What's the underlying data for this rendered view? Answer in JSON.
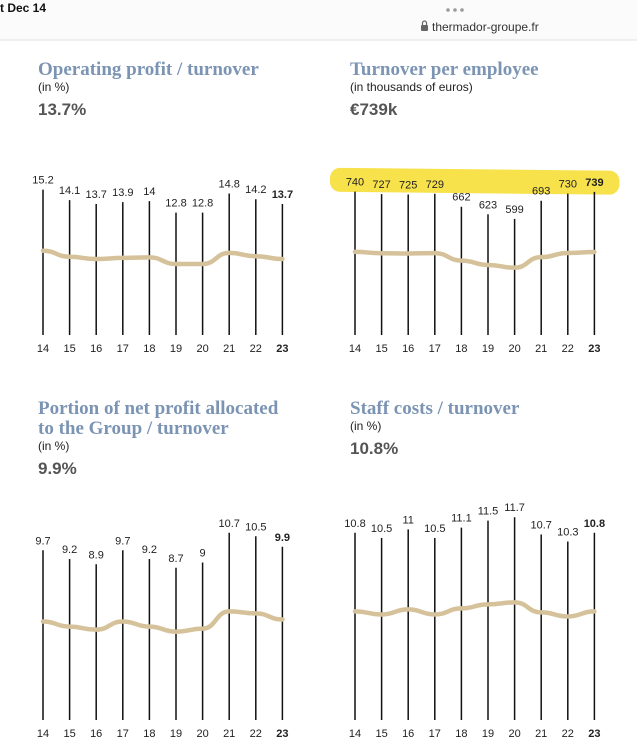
{
  "browser": {
    "clock": "t Dec 14",
    "url": "thermador-groupe.fr"
  },
  "chart_data": [
    {
      "type": "line",
      "title": "Operating profit / turnover",
      "subtitle": "(in %)",
      "headline": "13.7%",
      "categories": [
        "14",
        "15",
        "16",
        "17",
        "18",
        "19",
        "20",
        "21",
        "22",
        "23"
      ],
      "values": [
        15.2,
        14.1,
        13.7,
        13.9,
        14,
        12.8,
        12.8,
        14.8,
        14.2,
        13.7
      ],
      "ylim": [
        0,
        16
      ],
      "color": "#d6c29a"
    },
    {
      "type": "line",
      "title": "Turnover per employee",
      "subtitle": "(in thousands of euros)",
      "headline": "€739k",
      "categories": [
        "14",
        "15",
        "16",
        "17",
        "18",
        "19",
        "20",
        "21",
        "22",
        "23"
      ],
      "values": [
        740,
        727,
        725,
        729,
        662,
        623,
        599,
        693,
        730,
        739
      ],
      "ylim": [
        0,
        800
      ],
      "color": "#d6c29a",
      "highlight": "#f8e24b"
    },
    {
      "type": "line",
      "title": [
        "Portion of net profit allocated",
        "to the Group / turnover"
      ],
      "subtitle": "(in %)",
      "headline": "9.9%",
      "categories": [
        "14",
        "15",
        "16",
        "17",
        "18",
        "19",
        "20",
        "21",
        "22",
        "23"
      ],
      "values": [
        9.7,
        9.2,
        8.9,
        9.7,
        9.2,
        8.7,
        9,
        10.7,
        10.5,
        9.9
      ],
      "ylim": [
        0,
        12
      ],
      "color": "#d6c29a"
    },
    {
      "type": "line",
      "title": "Staff costs / turnover",
      "subtitle": "(in %)",
      "headline": "10.8%",
      "categories": [
        "14",
        "15",
        "16",
        "17",
        "18",
        "19",
        "20",
        "21",
        "22",
        "23"
      ],
      "values": [
        10.8,
        10.5,
        11,
        10.5,
        11.1,
        11.5,
        11.7,
        10.7,
        10.3,
        10.8
      ],
      "ylim": [
        0,
        12
      ],
      "color": "#d6c29a"
    }
  ]
}
